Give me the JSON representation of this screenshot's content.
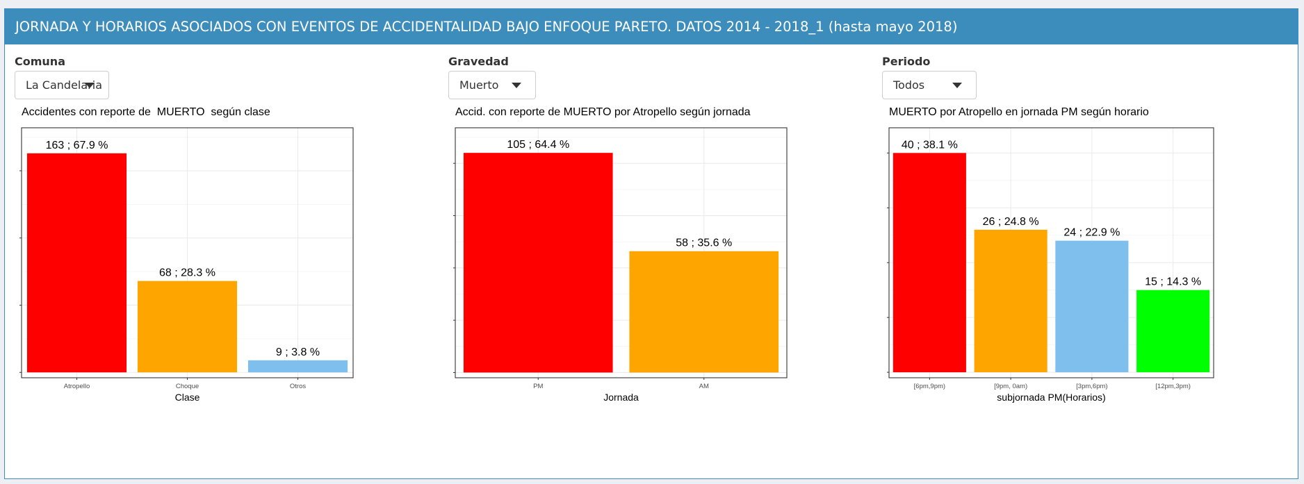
{
  "header": {
    "title": "JORNADA Y HORARIOS ASOCIADOS CON EVENTOS DE ACCIDENTALIDAD BAJO ENFOQUE PARETO. DATOS 2014 - 2018_1 (hasta mayo 2018)"
  },
  "filters": [
    {
      "label": "Comuna",
      "value": "La Candelaria"
    },
    {
      "label": "Gravedad",
      "value": "Muerto"
    },
    {
      "label": "Periodo",
      "value": "Todos"
    }
  ],
  "chart_data": [
    {
      "type": "bar",
      "title": "Accidentes con reporte de  MUERTO  según clase",
      "xlabel": "Clase",
      "ylabel": "",
      "categories": [
        "Atropello",
        "Choque",
        "Otros"
      ],
      "values": [
        163,
        68,
        9
      ],
      "data_labels": [
        "163 ; 67.9 %",
        "68 ; 28.3 %",
        "9 ; 3.8 %"
      ],
      "colors": [
        "#ff0000",
        "#ffa500",
        "#7fbfee"
      ],
      "ylim": [
        -4,
        182
      ],
      "grid": true
    },
    {
      "type": "bar",
      "title": "Accid. con reporte de MUERTO por Atropello según jornada",
      "xlabel": "Jornada",
      "ylabel": "",
      "categories": [
        "PM",
        "AM"
      ],
      "values": [
        105,
        58
      ],
      "data_labels": [
        "105 ; 64.4 %",
        "58 ; 35.6 %"
      ],
      "colors": [
        "#ff0000",
        "#ffa500"
      ],
      "ylim": [
        -2.5,
        117
      ],
      "grid": true
    },
    {
      "type": "bar",
      "title": "MUERTO por Atropello en jornada PM según horario",
      "xlabel": "subjornada PM(Horarios)",
      "ylabel": "",
      "categories": [
        "[6pm,9pm)",
        "[9pm, 0am)",
        "[3pm,6pm)",
        "[12pm,3pm)"
      ],
      "values": [
        40,
        26,
        24,
        15
      ],
      "data_labels": [
        "40 ; 38.1 %",
        "26 ; 24.8 %",
        "24 ; 22.9 %",
        "15 ; 14.3 %"
      ],
      "colors": [
        "#ff0000",
        "#ffa500",
        "#7fbfee",
        "#00ff00"
      ],
      "ylim": [
        -1,
        44.6
      ],
      "grid": true
    }
  ]
}
